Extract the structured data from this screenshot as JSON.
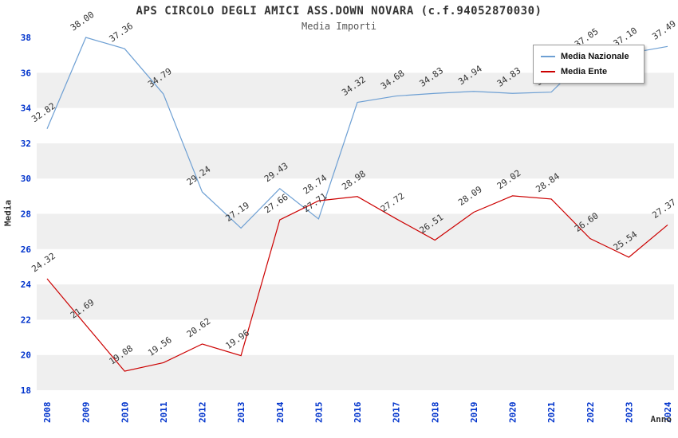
{
  "title": "APS CIRCOLO DEGLI AMICI ASS.DOWN NOVARA (c.f.94052870030)",
  "subtitle": "Media Importi",
  "axes": {
    "y_title": "Media",
    "x_title": "Anno"
  },
  "legend": {
    "position": "top-right",
    "items": [
      {
        "label": "Media Nazionale",
        "color": "#6d9fd3"
      },
      {
        "label": "Media Ente",
        "color": "#cc0000"
      }
    ]
  },
  "colors": {
    "tick_label": "#0033cc",
    "point_label": "#333333",
    "band_gray": "#efefef",
    "band_white": "#ffffff",
    "background": "#ffffff"
  },
  "chart_data": {
    "type": "line",
    "x": [
      2008,
      2009,
      2010,
      2011,
      2012,
      2013,
      2014,
      2015,
      2016,
      2017,
      2018,
      2019,
      2020,
      2021,
      2022,
      2023,
      2024
    ],
    "series": [
      {
        "name": "Media Nazionale",
        "color": "#6d9fd3",
        "values": [
          32.82,
          38.0,
          37.36,
          34.79,
          29.24,
          27.19,
          29.43,
          27.71,
          34.32,
          34.68,
          34.83,
          34.94,
          34.83,
          34.9,
          37.05,
          37.1,
          37.49
        ]
      },
      {
        "name": "Media Ente",
        "color": "#cc0000",
        "values": [
          24.32,
          21.69,
          19.08,
          19.56,
          20.62,
          19.96,
          27.66,
          28.74,
          28.98,
          27.72,
          26.51,
          28.09,
          29.02,
          28.84,
          26.6,
          25.54,
          27.37
        ]
      }
    ],
    "title": "APS CIRCOLO DEGLI AMICI ASS.DOWN NOVARA (c.f.94052870030)",
    "subtitle": "Media Importi",
    "xlabel": "Anno",
    "ylabel": "Media",
    "ylim": [
      18,
      38
    ],
    "ytick_step": 2,
    "grid": "horizontal-bands",
    "legend_position": "top-right",
    "point_labels": true
  }
}
